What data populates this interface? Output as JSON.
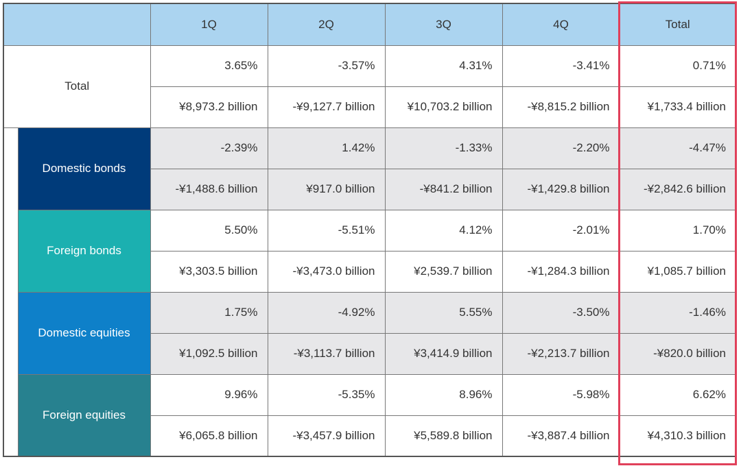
{
  "header": {
    "corner": "",
    "columns": [
      "1Q",
      "2Q",
      "3Q",
      "4Q",
      "Total"
    ]
  },
  "highlight_color": "#e0405a",
  "rows": [
    {
      "label": "Total",
      "color": "#ffffff",
      "shaded": false,
      "pct": [
        "3.65%",
        "-3.57%",
        "4.31%",
        "-3.41%",
        "0.71%"
      ],
      "amt": [
        "¥8,973.2 billion",
        "-¥9,127.7 billion",
        "¥10,703.2 billion",
        "-¥8,815.2 billion",
        "¥1,733.4 billion"
      ]
    },
    {
      "label": "Domestic bonds",
      "color": "#003b7a",
      "shaded": true,
      "pct": [
        "-2.39%",
        "1.42%",
        "-1.33%",
        "-2.20%",
        "-4.47%"
      ],
      "amt": [
        "-¥1,488.6 billion",
        "¥917.0 billion",
        "-¥841.2 billion",
        "-¥1,429.8 billion",
        "-¥2,842.6 billion"
      ]
    },
    {
      "label": "Foreign bonds",
      "color": "#1bb0b0",
      "shaded": false,
      "pct": [
        "5.50%",
        "-5.51%",
        "4.12%",
        "-2.01%",
        "1.70%"
      ],
      "amt": [
        "¥3,303.5 billion",
        "-¥3,473.0 billion",
        "¥2,539.7 billion",
        "-¥1,284.3 billion",
        "¥1,085.7 billion"
      ]
    },
    {
      "label": "Domestic equities",
      "color": "#0e80c9",
      "shaded": true,
      "pct": [
        "1.75%",
        "-4.92%",
        "5.55%",
        "-3.50%",
        "-1.46%"
      ],
      "amt": [
        "¥1,092.5 billion",
        "-¥3,113.7 billion",
        "¥3,414.9 billion",
        "-¥2,213.7 billion",
        "-¥820.0 billion"
      ]
    },
    {
      "label": "Foreign equities",
      "color": "#27818f",
      "shaded": false,
      "pct": [
        "9.96%",
        "-5.35%",
        "8.96%",
        "-5.98%",
        "6.62%"
      ],
      "amt": [
        "¥6,065.8 billion",
        "-¥3,457.9 billion",
        "¥5,589.8 billion",
        "-¥3,887.4 billion",
        "¥4,310.3 billion"
      ]
    }
  ]
}
